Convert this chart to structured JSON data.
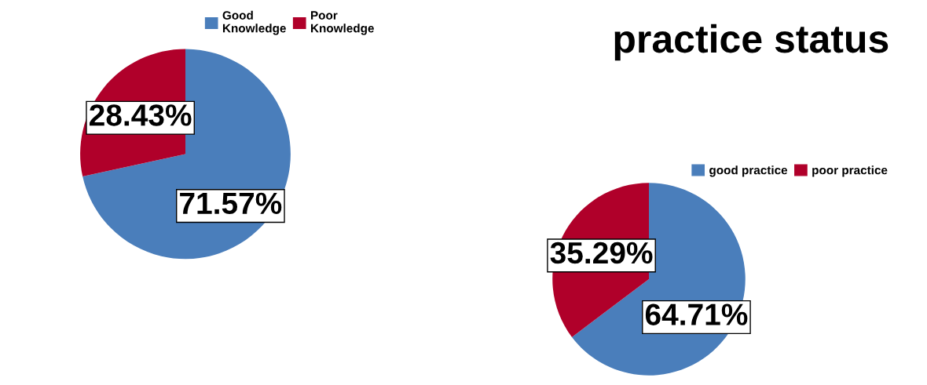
{
  "chart_data": [
    {
      "type": "pie",
      "categories": [
        "Good\nKnowledge",
        "Poor\nKnowledge"
      ],
      "values": [
        71.57,
        28.43
      ],
      "colors": [
        "#4a7ebb",
        "#b0002a"
      ],
      "value_labels": [
        "71.57%",
        "28.43%"
      ],
      "legend": "top"
    },
    {
      "type": "pie",
      "title": "practice status",
      "categories": [
        "good practice",
        "poor practice"
      ],
      "values": [
        64.71,
        35.29
      ],
      "colors": [
        "#4a7ebb",
        "#b0002a"
      ],
      "value_labels": [
        "64.71%",
        "35.29%"
      ],
      "legend": "top right"
    }
  ]
}
